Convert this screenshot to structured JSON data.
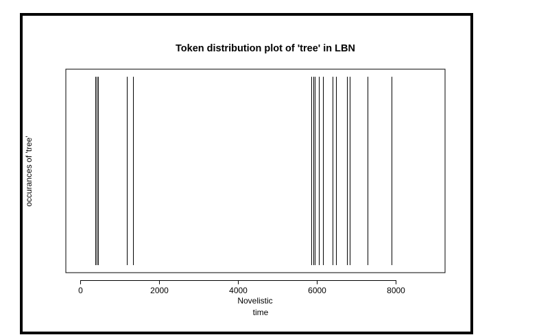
{
  "chart_data": {
    "type": "token-distribution",
    "title": "Token distribution plot of 'tree' in LBN",
    "xlabel": [
      "Novelistic",
      "time"
    ],
    "ylabel": "occurances of 'tree'",
    "xlim": [
      -370,
      9250
    ],
    "xticks": [
      0,
      2000,
      4000,
      6000,
      8000
    ],
    "x": [
      375,
      415,
      440,
      1185,
      1330,
      5865,
      5905,
      5945,
      6055,
      6145,
      6400,
      6480,
      6765,
      6830,
      7290,
      7890
    ],
    "color": "#000000"
  }
}
